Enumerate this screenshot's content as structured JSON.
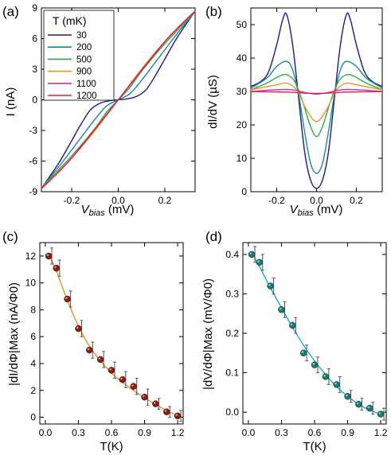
{
  "panels": [
    {
      "key": "a",
      "panel_label": "(a)",
      "xlabel": "V",
      "xlabel_sub": "bias",
      "xlabel_unit": " (mV)",
      "ylabel": "I (nA)"
    },
    {
      "key": "b",
      "panel_label": "(b)",
      "xlabel": "V",
      "xlabel_sub": "bias",
      "xlabel_unit": " (mV)",
      "ylabel": "dI/dV (µS)"
    },
    {
      "key": "c",
      "panel_label": "(c)",
      "xlabel": "T(K)",
      "ylabel": "|dI/dΦ|Max (nA/Φ0)"
    },
    {
      "key": "d",
      "panel_label": "(d)",
      "xlabel": "T(K)",
      "ylabel": "|dV/dΦ|Max (mV/Φ0)"
    }
  ],
  "legend": {
    "title": "T (mK)",
    "entries": [
      "30",
      "200",
      "500",
      "900",
      "1100",
      "1200"
    ],
    "colors": [
      "#1a1a8c",
      "#1a8a8a",
      "#2ea84a",
      "#f0901e",
      "#e020c0",
      "#e81e3c"
    ]
  },
  "chart_data": [
    {
      "type": "line",
      "panel": "a",
      "xlim": [
        -0.33,
        0.33
      ],
      "ylim": [
        -9,
        9
      ],
      "xticks": [
        "-0.2",
        "0.0",
        "0.2"
      ],
      "xtick_values": [
        -0.2,
        0.0,
        0.2
      ],
      "yticks": [
        "-9",
        "-6",
        "-3",
        "0",
        "3",
        "6",
        "9"
      ],
      "ytick_values": [
        -9,
        -6,
        -3,
        0,
        3,
        6,
        9
      ],
      "series": [
        {
          "name": "30",
          "color": "#1a1a8c",
          "x": [
            -0.33,
            -0.3,
            -0.25,
            -0.2,
            -0.16,
            -0.12,
            -0.08,
            -0.04,
            0.0,
            0.04,
            0.08,
            0.12,
            0.16,
            0.2,
            0.25,
            0.3,
            0.33
          ],
          "y": [
            -8.7,
            -7.7,
            -6.0,
            -4.0,
            -2.4,
            -1.0,
            -0.35,
            -0.1,
            0.0,
            0.1,
            0.35,
            1.0,
            2.4,
            4.0,
            6.0,
            7.7,
            8.7
          ]
        },
        {
          "name": "200",
          "color": "#1a8a8a",
          "x": [
            -0.33,
            -0.3,
            -0.25,
            -0.2,
            -0.15,
            -0.1,
            -0.05,
            0.0,
            0.05,
            0.1,
            0.15,
            0.2,
            0.25,
            0.3,
            0.33
          ],
          "y": [
            -8.7,
            -7.8,
            -6.4,
            -4.9,
            -3.4,
            -1.9,
            -0.6,
            0.0,
            0.6,
            1.9,
            3.4,
            4.9,
            6.4,
            7.8,
            8.7
          ]
        },
        {
          "name": "500",
          "color": "#2ea84a",
          "x": [
            -0.33,
            -0.3,
            -0.2,
            -0.1,
            -0.05,
            0.0,
            0.05,
            0.1,
            0.2,
            0.3,
            0.33
          ],
          "y": [
            -8.7,
            -7.9,
            -5.5,
            -2.8,
            -1.2,
            0.0,
            1.2,
            2.8,
            5.5,
            7.9,
            8.7
          ]
        },
        {
          "name": "900",
          "color": "#f0901e",
          "x": [
            -0.33,
            -0.2,
            -0.1,
            0.0,
            0.1,
            0.2,
            0.33
          ],
          "y": [
            -8.7,
            -5.7,
            -3.0,
            0.0,
            3.0,
            5.7,
            8.7
          ]
        },
        {
          "name": "1100",
          "color": "#e020c0",
          "x": [
            -0.33,
            -0.2,
            0.0,
            0.2,
            0.33
          ],
          "y": [
            -8.7,
            -5.7,
            0.0,
            5.7,
            8.7
          ]
        },
        {
          "name": "1200",
          "color": "#e81e3c",
          "x": [
            -0.33,
            -0.2,
            0.0,
            0.2,
            0.33
          ],
          "y": [
            -8.7,
            -5.7,
            0.0,
            5.7,
            8.7
          ]
        }
      ]
    },
    {
      "type": "line",
      "panel": "b",
      "xlim": [
        -0.33,
        0.33
      ],
      "ylim": [
        0,
        55
      ],
      "xticks": [
        "-0.2",
        "0.0",
        "0.2"
      ],
      "xtick_values": [
        -0.2,
        0.0,
        0.2
      ],
      "yticks": [
        "0",
        "10",
        "20",
        "30",
        "40",
        "50"
      ],
      "ytick_values": [
        0,
        10,
        20,
        30,
        40,
        50
      ],
      "series": [
        {
          "name": "30",
          "color": "#1a1a8c",
          "x": [
            -0.33,
            -0.28,
            -0.24,
            -0.2,
            -0.17,
            -0.15,
            -0.12,
            -0.09,
            -0.06,
            -0.03,
            0.0,
            0.03,
            0.06,
            0.09,
            0.12,
            0.15,
            0.17,
            0.2,
            0.24,
            0.28,
            0.33
          ],
          "y": [
            31.5,
            33.0,
            36.0,
            44.0,
            51.5,
            53.0,
            44.0,
            28.0,
            12.0,
            3.5,
            1.0,
            3.5,
            12.0,
            28.0,
            44.0,
            53.0,
            51.5,
            44.0,
            36.0,
            33.0,
            31.5
          ]
        },
        {
          "name": "200",
          "color": "#1a8a8a",
          "x": [
            -0.33,
            -0.25,
            -0.2,
            -0.15,
            -0.12,
            -0.09,
            -0.06,
            -0.03,
            0.0,
            0.03,
            0.06,
            0.09,
            0.12,
            0.15,
            0.2,
            0.25,
            0.33
          ],
          "y": [
            31.0,
            34.0,
            37.5,
            39.0,
            36.5,
            29.0,
            18.0,
            8.5,
            5.5,
            8.5,
            18.0,
            29.0,
            36.5,
            39.0,
            37.5,
            34.0,
            31.0
          ]
        },
        {
          "name": "500",
          "color": "#2ea84a",
          "x": [
            -0.33,
            -0.25,
            -0.19,
            -0.15,
            -0.11,
            -0.07,
            -0.03,
            0.0,
            0.03,
            0.07,
            0.11,
            0.15,
            0.19,
            0.25,
            0.33
          ],
          "y": [
            30.5,
            32.5,
            34.5,
            35.0,
            33.0,
            27.0,
            19.5,
            16.5,
            19.5,
            27.0,
            33.0,
            35.0,
            34.5,
            32.5,
            30.5
          ]
        },
        {
          "name": "900",
          "color": "#f0901e",
          "x": [
            -0.33,
            -0.2,
            -0.15,
            -0.1,
            -0.05,
            0.0,
            0.05,
            0.1,
            0.15,
            0.2,
            0.33
          ],
          "y": [
            30.5,
            32.0,
            32.5,
            30.5,
            24.5,
            21.0,
            24.5,
            30.5,
            32.5,
            32.0,
            30.5
          ]
        },
        {
          "name": "1100",
          "color": "#e020c0",
          "x": [
            -0.33,
            -0.15,
            -0.05,
            0.0,
            0.05,
            0.15,
            0.33
          ],
          "y": [
            30.0,
            30.6,
            29.6,
            29.2,
            29.6,
            30.6,
            30.0
          ]
        },
        {
          "name": "1200",
          "color": "#e81e3c",
          "x": [
            -0.33,
            -0.15,
            0.0,
            0.15,
            0.33
          ],
          "y": [
            30.0,
            29.8,
            29.4,
            29.8,
            30.0
          ]
        }
      ]
    },
    {
      "type": "scatter",
      "panel": "c",
      "xlim": [
        -0.05,
        1.25
      ],
      "ylim": [
        -0.5,
        13
      ],
      "xticks": [
        "0.0",
        "0.3",
        "0.6",
        "0.9",
        "1.2"
      ],
      "xtick_values": [
        0.0,
        0.3,
        0.6,
        0.9,
        1.2
      ],
      "yticks": [
        "0",
        "2",
        "4",
        "6",
        "8",
        "10",
        "12"
      ],
      "ytick_values": [
        0,
        2,
        4,
        6,
        8,
        10,
        12
      ],
      "marker_color": "#8b1a10",
      "fit_color": "#f0901e",
      "x": [
        0.03,
        0.1,
        0.2,
        0.3,
        0.4,
        0.5,
        0.6,
        0.7,
        0.8,
        0.9,
        1.0,
        1.1,
        1.2
      ],
      "y": [
        12.0,
        11.1,
        8.8,
        6.6,
        5.0,
        4.3,
        3.5,
        2.8,
        2.3,
        1.5,
        1.0,
        0.4,
        0.1
      ],
      "err": [
        0.6,
        0.6,
        0.6,
        0.6,
        0.6,
        0.6,
        0.6,
        0.6,
        0.6,
        0.6,
        0.4,
        0.4,
        0.4
      ],
      "fit_x": [
        0.03,
        0.1,
        0.2,
        0.3,
        0.4,
        0.5,
        0.6,
        0.7,
        0.8,
        0.9,
        1.0,
        1.1,
        1.2
      ],
      "fit_y": [
        12.1,
        10.9,
        8.7,
        6.8,
        5.3,
        4.2,
        3.3,
        2.6,
        2.0,
        1.45,
        0.95,
        0.5,
        0.1
      ]
    },
    {
      "type": "scatter",
      "panel": "d",
      "xlim": [
        -0.05,
        1.25
      ],
      "ylim": [
        -0.03,
        0.43
      ],
      "xticks": [
        "0.0",
        "0.3",
        "0.6",
        "0.9",
        "1.2"
      ],
      "xtick_values": [
        0.0,
        0.3,
        0.6,
        0.9,
        1.2
      ],
      "yticks": [
        "0.0",
        "0.1",
        "0.2",
        "0.3",
        "0.4"
      ],
      "ytick_values": [
        0.0,
        0.1,
        0.2,
        0.3,
        0.4
      ],
      "marker_color": "#127a78",
      "fit_color": "#17b3b0",
      "x": [
        0.03,
        0.1,
        0.2,
        0.3,
        0.4,
        0.5,
        0.6,
        0.7,
        0.8,
        0.9,
        1.0,
        1.1,
        1.2
      ],
      "y": [
        0.4,
        0.38,
        0.32,
        0.26,
        0.22,
        0.15,
        0.12,
        0.09,
        0.07,
        0.04,
        0.02,
        0.01,
        -0.005
      ],
      "err": [
        0.02,
        0.02,
        0.02,
        0.02,
        0.02,
        0.02,
        0.02,
        0.02,
        0.02,
        0.015,
        0.015,
        0.015,
        0.015
      ],
      "fit_x": [
        0.03,
        0.1,
        0.2,
        0.3,
        0.4,
        0.5,
        0.6,
        0.7,
        0.8,
        0.9,
        1.0,
        1.1,
        1.2
      ],
      "fit_y": [
        0.405,
        0.37,
        0.315,
        0.265,
        0.215,
        0.17,
        0.13,
        0.095,
        0.065,
        0.04,
        0.02,
        0.005,
        -0.005
      ]
    }
  ]
}
